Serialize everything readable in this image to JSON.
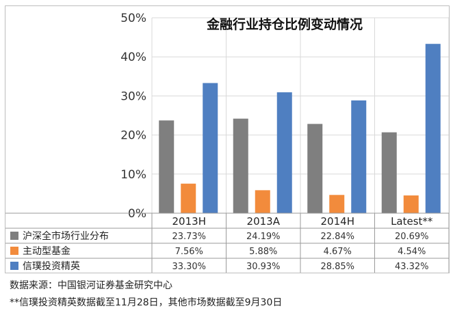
{
  "chart_data": {
    "type": "bar",
    "title": "金融行业持仓比例变动情况",
    "categories": [
      "2013H",
      "2013A",
      "2014H",
      "Latest**"
    ],
    "series": [
      {
        "name": "沪深全市场行业分布",
        "values": [
          23.73,
          24.19,
          22.84,
          20.69
        ],
        "labels": [
          "23.73%",
          "24.19%",
          "22.84%",
          "20.69%"
        ],
        "color": "#7f7f7f"
      },
      {
        "name": "主动型基金",
        "values": [
          7.56,
          5.88,
          4.67,
          4.54
        ],
        "labels": [
          "7.56%",
          "5.88%",
          "4.67%",
          "4.54%"
        ],
        "color": "#f28b3c"
      },
      {
        "name": "信璞投资精英",
        "values": [
          33.3,
          30.93,
          28.85,
          43.32
        ],
        "labels": [
          "33.30%",
          "30.93%",
          "28.85%",
          "43.32%"
        ],
        "color": "#4f7fc1"
      }
    ],
    "yticks": [
      "0%",
      "10%",
      "20%",
      "30%",
      "40%",
      "50%"
    ],
    "ylim": [
      0,
      50
    ],
    "grid": true,
    "legend": "data-table"
  },
  "notes": {
    "source": "数据来源：中国银河证券基金研究中心",
    "footnote": "**信璞投资精英数据截至11月28日，其他市场数据截至9月30日"
  }
}
